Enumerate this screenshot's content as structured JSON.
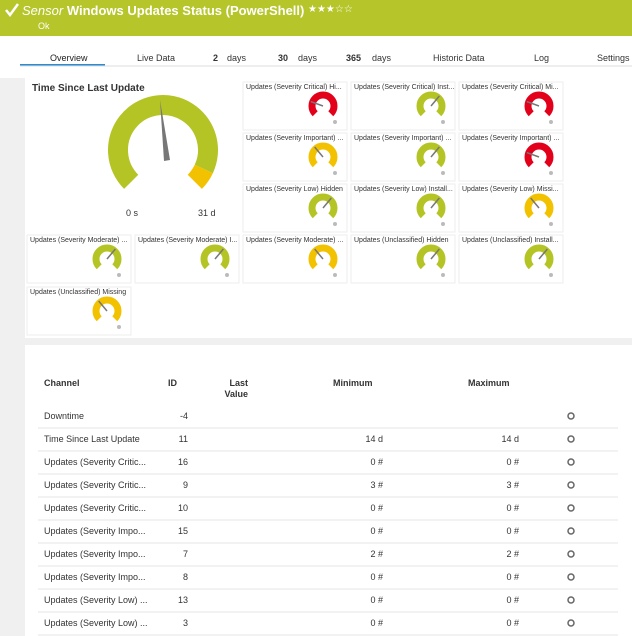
{
  "header": {
    "sensor_label": "Sensor",
    "title": "Windows Updates Status (PowerShell)",
    "status": "Ok"
  },
  "tabs": [
    {
      "label": "Overview"
    },
    {
      "label": "Live Data"
    },
    {
      "number": "2",
      "unit": "days"
    },
    {
      "number": "30",
      "unit": "days"
    },
    {
      "number": "365",
      "unit": "days"
    },
    {
      "label": "Historic Data"
    },
    {
      "label": "Log"
    },
    {
      "label": "Settings"
    }
  ],
  "main_gauge": {
    "title": "Time Since Last Update",
    "min_label": "0 s",
    "max_label": "31 d"
  },
  "gauges": [
    {
      "label": "Updates (Severity Critical) Hi...",
      "color": "#e2001a"
    },
    {
      "label": "Updates (Severity Critical) Inst...",
      "color": "#b4c424"
    },
    {
      "label": "Updates (Severity Critical) Mi...",
      "color": "#e2001a"
    },
    {
      "label": "Updates (Severity Important) ...",
      "color": "#f2c200"
    },
    {
      "label": "Updates (Severity Important) ...",
      "color": "#b4c424"
    },
    {
      "label": "Updates (Severity Important) ...",
      "color": "#e2001a"
    },
    {
      "label": "Updates (Severity Low) Hidden",
      "color": "#b4c424"
    },
    {
      "label": "Updates (Severity Low) Install...",
      "color": "#b4c424"
    },
    {
      "label": "Updates (Severity Low) Missi...",
      "color": "#f2c200"
    },
    {
      "label": "Updates (Severity Moderate) ...",
      "color": "#b4c424"
    },
    {
      "label": "Updates (Severity Moderate) I...",
      "color": "#b4c424"
    },
    {
      "label": "Updates (Severity Moderate) ...",
      "color": "#f2c200"
    },
    {
      "label": "Updates (Unclassified) Hidden",
      "color": "#b4c424"
    },
    {
      "label": "Updates (Unclassified) Install...",
      "color": "#b4c424"
    },
    {
      "label": "Updates (Unclassified) Missing",
      "color": "#f2c200"
    }
  ],
  "table": {
    "columns": [
      "Channel",
      "ID",
      "Last Value",
      "Minimum",
      "Maximum"
    ],
    "rows": [
      {
        "channel": "Downtime",
        "id": -4
      },
      {
        "channel": "Time Since Last Update",
        "id": 11,
        "minimum": "14 d",
        "maximum": "14 d"
      },
      {
        "channel": "Updates (Severity Critic...",
        "id": 16,
        "minimum": "0 #",
        "maximum": "0 #"
      },
      {
        "channel": "Updates (Severity Critic...",
        "id": 9,
        "minimum": "3 #",
        "maximum": "3 #"
      },
      {
        "channel": "Updates (Severity Critic...",
        "id": 10,
        "minimum": "0 #",
        "maximum": "0 #"
      },
      {
        "channel": "Updates (Severity Impo...",
        "id": 15,
        "minimum": "0 #",
        "maximum": "0 #"
      },
      {
        "channel": "Updates (Severity Impo...",
        "id": 7,
        "minimum": "2 #",
        "maximum": "2 #"
      },
      {
        "channel": "Updates (Severity Impo...",
        "id": 8,
        "minimum": "0 #",
        "maximum": "0 #"
      },
      {
        "channel": "Updates (Severity Low) ...",
        "id": 13,
        "minimum": "0 #",
        "maximum": "0 #"
      },
      {
        "channel": "Updates (Severity Low) ...",
        "id": 3,
        "minimum": "0 #",
        "maximum": "0 #"
      }
    ]
  }
}
